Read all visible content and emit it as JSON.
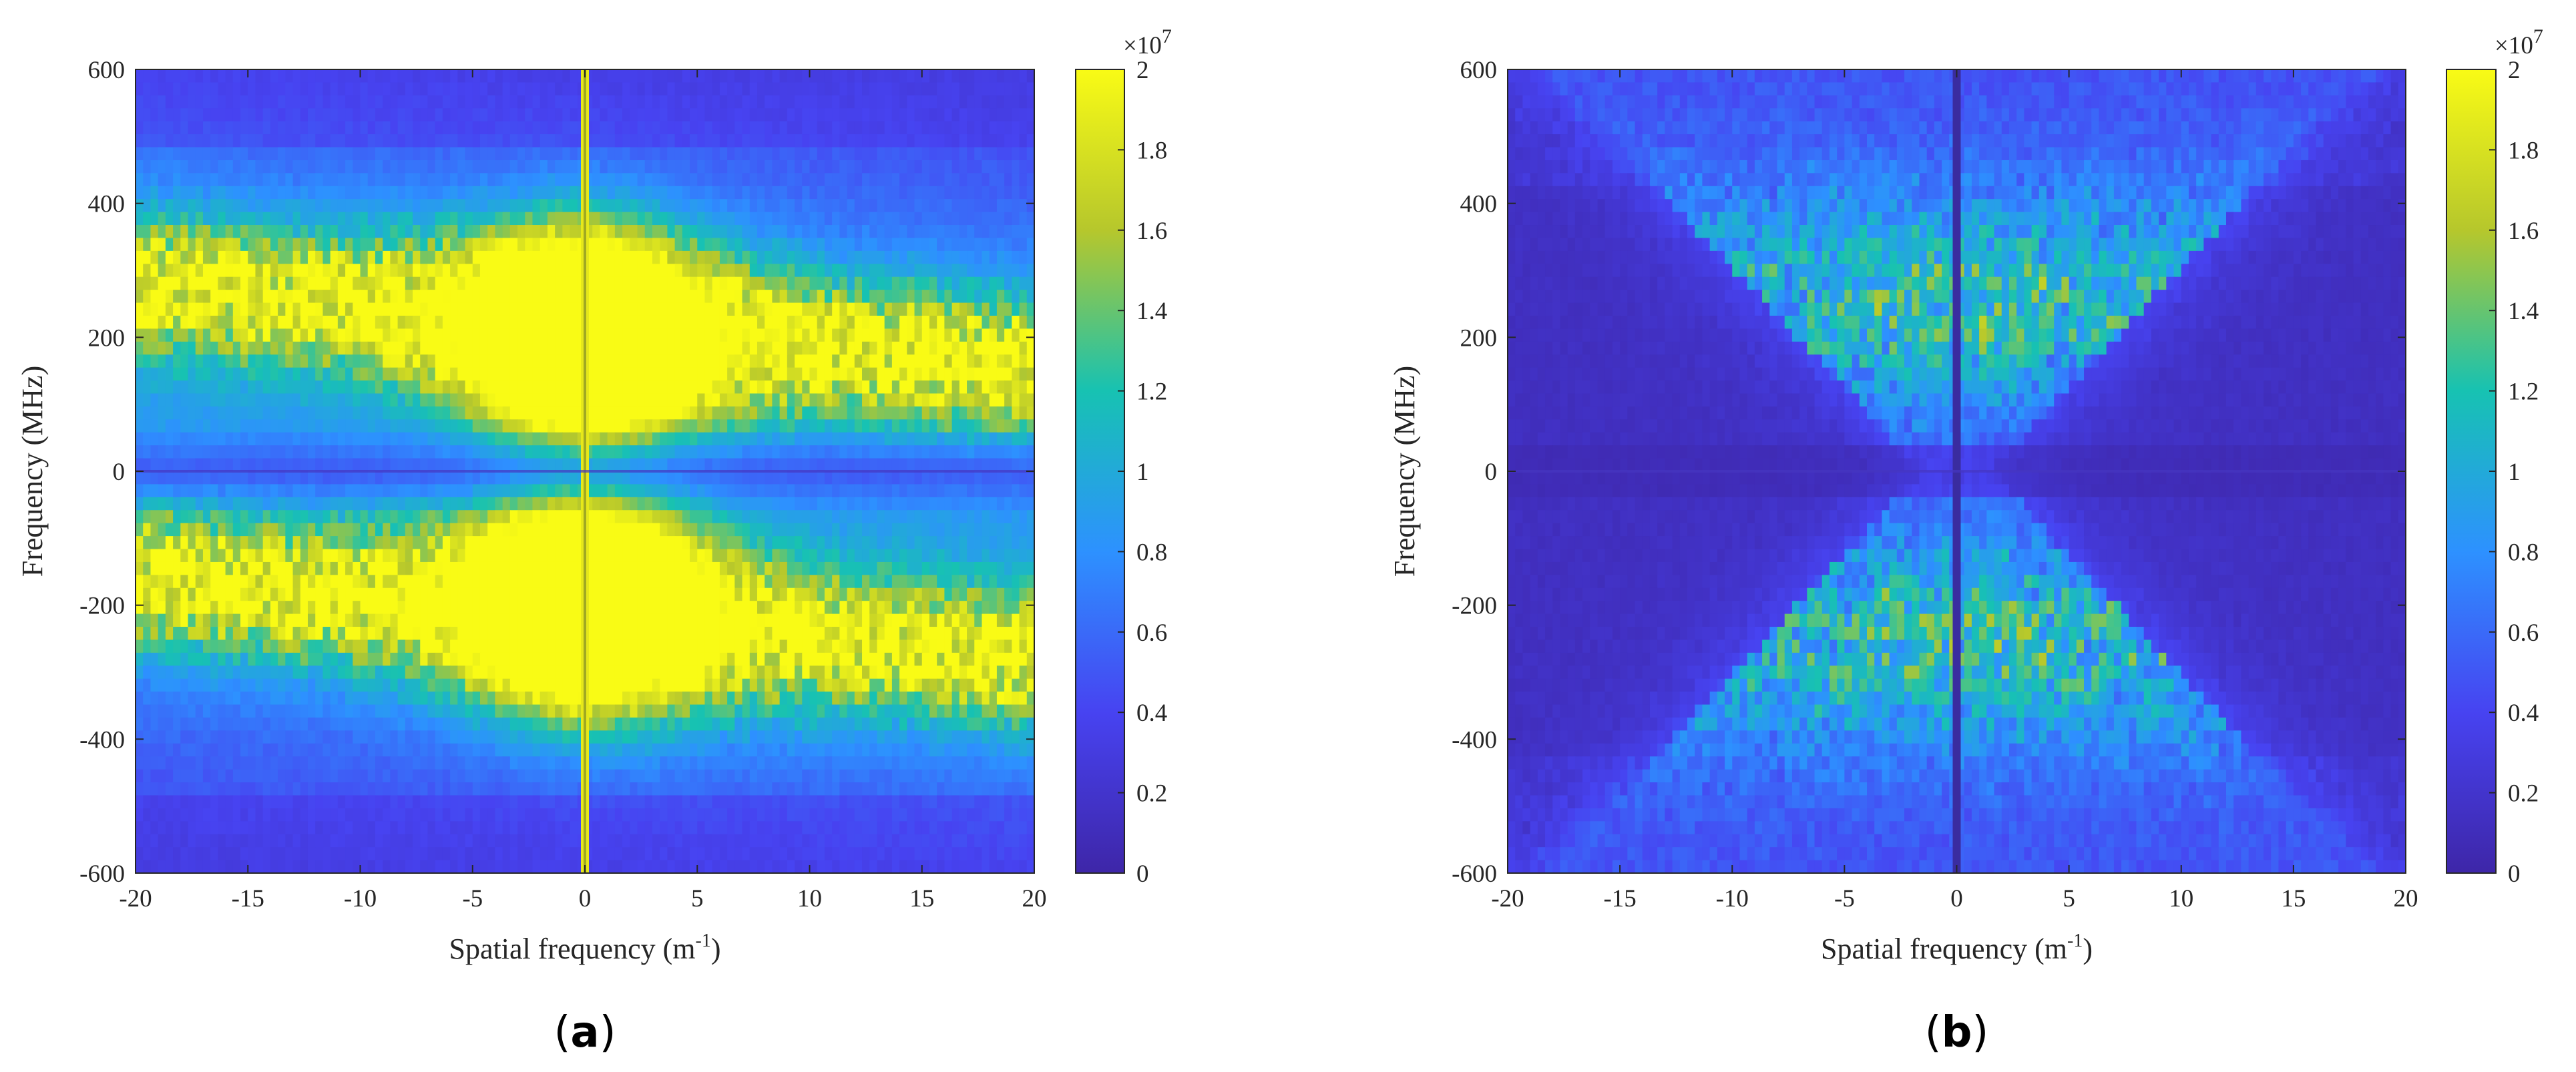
{
  "colormap": [
    "#3e26a8",
    "#4743f1",
    "#2d91ff",
    "#17c2b2",
    "#b6c72c",
    "#f9fb15"
  ],
  "colors": {
    "text": "#262626",
    "axis": "#262626"
  },
  "chart_data": [
    {
      "type": "heatmap",
      "panel_label": "a",
      "xlabel": "Spatial frequency (m",
      "xlabel_sup": "-1",
      "xlabel_end": ")",
      "ylabel": "Frequency (MHz)",
      "xlim": [
        -20,
        20
      ],
      "ylim": [
        -600,
        600
      ],
      "xticks": [
        -20,
        -15,
        -10,
        -5,
        0,
        5,
        10,
        15,
        20
      ],
      "yticks": [
        600,
        400,
        200,
        0,
        -200,
        -400,
        -600
      ],
      "colorbar": {
        "clim": [
          0,
          2
        ],
        "ticks": [
          "2",
          "1.8",
          "1.6",
          "1.4",
          "1.2",
          "1",
          "0.8",
          "0.6",
          "0.4",
          "0.2",
          "0"
        ],
        "multiplier_base": "×10",
        "multiplier_exp": "7"
      },
      "pattern": "two bright tilted bands: positive band from (-20,280) to (20,160); negative band from (-20,-160) to (20,-280); saturated core near x=0 at ±200 MHz; bright vertical line at x=0"
    },
    {
      "type": "heatmap",
      "panel_label": "b",
      "xlabel": "Spatial frequency (m",
      "xlabel_sup": "-1",
      "xlabel_end": ")",
      "ylabel": "Frequency (MHz)",
      "xlim": [
        -20,
        20
      ],
      "ylim": [
        -600,
        600
      ],
      "xticks": [
        -20,
        -15,
        -10,
        -5,
        0,
        5,
        10,
        15,
        20
      ],
      "yticks": [
        600,
        400,
        200,
        0,
        -200,
        -400,
        -600
      ],
      "colorbar": {
        "clim": [
          0,
          2
        ],
        "ticks": [
          "2",
          "1.8",
          "1.6",
          "1.4",
          "1.2",
          "1",
          "0.8",
          "0.6",
          "0.4",
          "0.2",
          "0"
        ],
        "multiplier_base": "×10",
        "multiplier_exp": "7"
      },
      "pattern": "bowtie/hourglass shaped moderate-intensity region centered at x=0, widening with |frequency|; dark outside the cone; dark vertical line at x=0"
    }
  ]
}
